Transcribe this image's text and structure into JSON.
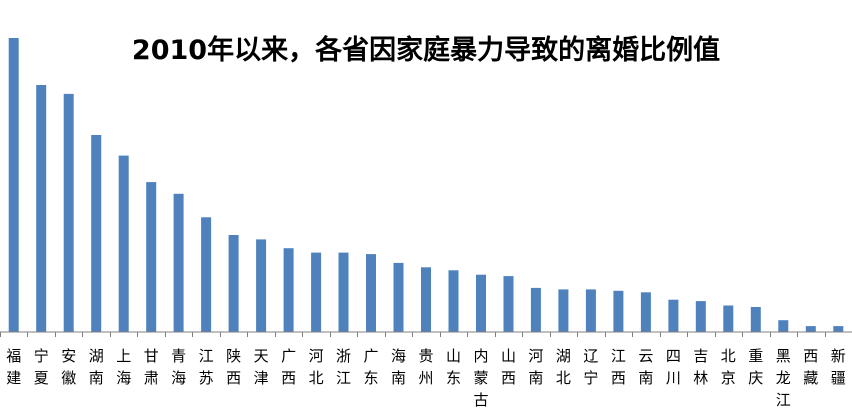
{
  "chart_data": {
    "type": "bar",
    "title": "2010年以来，各省因家庭暴力导致的离婚比例值",
    "xlabel": "",
    "ylabel": "",
    "ylim": [
      0,
      100
    ],
    "grid": false,
    "legend": "none",
    "bar_color": "#4f81bd",
    "categories": [
      "福建",
      "宁夏",
      "安徽",
      "湖南",
      "上海",
      "甘肃",
      "青海",
      "江苏",
      "陕西",
      "天津",
      "广西",
      "河北",
      "浙江",
      "广东",
      "海南",
      "贵州",
      "山东",
      "内蒙古",
      "山西",
      "河南",
      "湖北",
      "辽宁",
      "江西",
      "云南",
      "四川",
      "吉林",
      "北京",
      "重庆",
      "黑龙江",
      "西藏",
      "新疆"
    ],
    "values": [
      100,
      84,
      81,
      67,
      60,
      51,
      47,
      39,
      33,
      31.5,
      28.5,
      27,
      27,
      26.5,
      23.5,
      22,
      21,
      19.5,
      19,
      15,
      14.5,
      14.5,
      14,
      13.5,
      11,
      10.5,
      9,
      8.5,
      4,
      2,
      2
    ]
  }
}
